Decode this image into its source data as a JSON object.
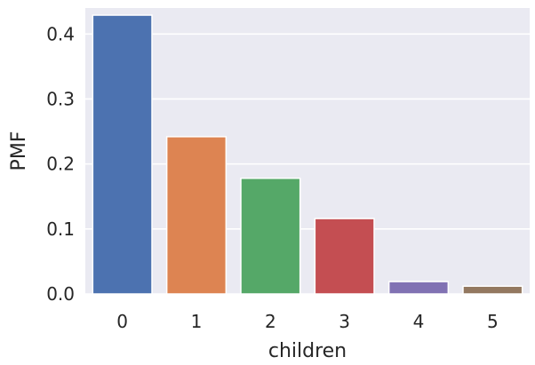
{
  "chart_data": {
    "type": "bar",
    "title": "",
    "xlabel": "children",
    "ylabel": "PMF",
    "categories": [
      "0",
      "1",
      "2",
      "3",
      "4",
      "5"
    ],
    "values": [
      0.429,
      0.242,
      0.178,
      0.116,
      0.019,
      0.012
    ],
    "ylim": [
      0,
      0.44
    ],
    "yticks": [
      0.0,
      0.1,
      0.2,
      0.3,
      0.4
    ],
    "ytick_labels": [
      "0.0",
      "0.1",
      "0.2",
      "0.3",
      "0.4"
    ],
    "grid": true,
    "colors": [
      "#4c72b0",
      "#dd8452",
      "#55a868",
      "#c44e52",
      "#8172b3",
      "#937860"
    ],
    "background": "#eaeaf2",
    "grid_color": "#ffffff"
  }
}
